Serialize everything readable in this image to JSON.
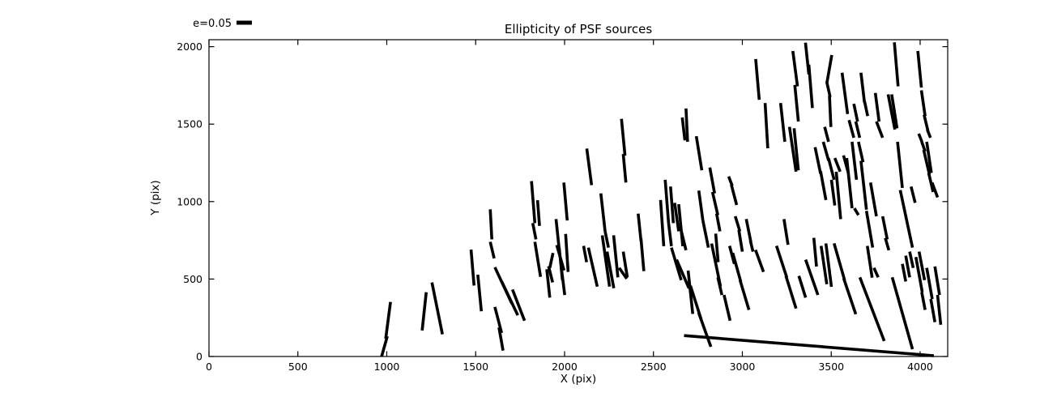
{
  "title": "Ellipticity of PSF sources",
  "legend": {
    "label": "e=0.05"
  },
  "axes": {
    "xlabel": "X (pix)",
    "ylabel": "Y (pix)"
  },
  "chart_data": {
    "type": "scatter",
    "subtype": "ellipticity-stick-map",
    "title": "Ellipticity of PSF sources",
    "xlabel": "X (pix)",
    "ylabel": "Y (pix)",
    "xlim": [
      0,
      4155
    ],
    "ylim": [
      0,
      2045
    ],
    "xticks": [
      0,
      500,
      1000,
      1500,
      2000,
      2500,
      3000,
      3500,
      4000
    ],
    "yticks": [
      0,
      500,
      1000,
      1500,
      2000
    ],
    "grid": false,
    "frame_color": "#000000",
    "stick_color": "#000000",
    "legend": {
      "label": "e=0.05",
      "position": "outside-upper-left",
      "reference_ellipticity": 0.05
    },
    "segments": [
      [
        971,
        0,
        1003,
        131
      ],
      [
        994,
        115,
        1021,
        352
      ],
      [
        1199,
        168,
        1222,
        415
      ],
      [
        1254,
        478,
        1313,
        143
      ],
      [
        1474,
        690,
        1491,
        458
      ],
      [
        1512,
        528,
        1532,
        292
      ],
      [
        1582,
        950,
        1591,
        756
      ],
      [
        1582,
        740,
        1604,
        633
      ],
      [
        1608,
        576,
        1704,
        341
      ],
      [
        1646,
        485,
        1737,
        266
      ],
      [
        1608,
        320,
        1646,
        152
      ],
      [
        1631,
        187,
        1654,
        38
      ],
      [
        1707,
        432,
        1775,
        231
      ],
      [
        1814,
        1132,
        1833,
        861
      ],
      [
        1848,
        1009,
        1859,
        843
      ],
      [
        1821,
        861,
        1839,
        756
      ],
      [
        1833,
        740,
        1865,
        514
      ],
      [
        1910,
        583,
        1933,
        478
      ],
      [
        1900,
        563,
        1917,
        380
      ],
      [
        1917,
        572,
        1935,
        668
      ],
      [
        1952,
        887,
        1970,
        690
      ],
      [
        1970,
        700,
        1988,
        493
      ],
      [
        1956,
        719,
        1997,
        556
      ],
      [
        1981,
        581,
        2001,
        397
      ],
      [
        1996,
        1123,
        2015,
        878
      ],
      [
        2006,
        791,
        2020,
        546
      ],
      [
        2107,
        714,
        2124,
        609
      ],
      [
        2125,
        1342,
        2152,
        1106
      ],
      [
        2204,
        1053,
        2228,
        808
      ],
      [
        2228,
        808,
        2247,
        703
      ],
      [
        2134,
        703,
        2184,
        451
      ],
      [
        2212,
        782,
        2253,
        451
      ],
      [
        2239,
        677,
        2277,
        441
      ],
      [
        2276,
        782,
        2300,
        511
      ],
      [
        2307,
        572,
        2350,
        502
      ],
      [
        2330,
        677,
        2353,
        511
      ],
      [
        2414,
        922,
        2430,
        745
      ],
      [
        2430,
        760,
        2446,
        551
      ],
      [
        2320,
        1534,
        2340,
        1297
      ],
      [
        2330,
        1307,
        2345,
        1123
      ],
      [
        2540,
        1010,
        2558,
        712
      ],
      [
        2566,
        1141,
        2585,
        861
      ],
      [
        2596,
        1097,
        2612,
        861
      ],
      [
        2585,
        861,
        2601,
        712
      ],
      [
        2601,
        703,
        2656,
        493
      ],
      [
        2619,
        992,
        2642,
        808
      ],
      [
        2642,
        983,
        2665,
        712
      ],
      [
        2657,
        808,
        2683,
        686
      ],
      [
        2662,
        1543,
        2677,
        1395
      ],
      [
        2683,
        1601,
        2692,
        1386
      ],
      [
        2741,
        1422,
        2772,
        1202
      ],
      [
        2755,
        1071,
        2778,
        878
      ],
      [
        2778,
        878,
        2809,
        703
      ],
      [
        2817,
        1220,
        2844,
        1053
      ],
      [
        2832,
        1062,
        2862,
        913
      ],
      [
        2855,
        922,
        2874,
        808
      ],
      [
        2923,
        1162,
        2943,
        1102
      ],
      [
        2938,
        1109,
        2968,
        978
      ],
      [
        2960,
        905,
        2986,
        808
      ],
      [
        2980,
        817,
        3000,
        677
      ],
      [
        3022,
        887,
        3048,
        738
      ],
      [
        3045,
        747,
        3060,
        677
      ],
      [
        3075,
        1920,
        3095,
        1657
      ],
      [
        3128,
        1636,
        3143,
        1344
      ],
      [
        3215,
        1636,
        3239,
        1386
      ],
      [
        3265,
        1482,
        3302,
        1193
      ],
      [
        3291,
        1473,
        3315,
        1202
      ],
      [
        3284,
        1972,
        3310,
        1744
      ],
      [
        3295,
        1753,
        3315,
        1517
      ],
      [
        3355,
        2026,
        3374,
        1821
      ],
      [
        3374,
        1884,
        3394,
        1604
      ],
      [
        2630,
        625,
        2700,
        440
      ],
      [
        2695,
        555,
        2721,
        275
      ],
      [
        2708,
        457,
        2768,
        241
      ],
      [
        2754,
        283,
        2823,
        63
      ],
      [
        2827,
        729,
        2877,
        453
      ],
      [
        2850,
        793,
        2864,
        609
      ],
      [
        2862,
        511,
        2885,
        397
      ],
      [
        2897,
        397,
        2931,
        231
      ],
      [
        2928,
        714,
        2955,
        598
      ],
      [
        2946,
        668,
        2991,
        483
      ],
      [
        2987,
        493,
        3037,
        301
      ],
      [
        3074,
        688,
        3119,
        546
      ],
      [
        3192,
        714,
        3250,
        510
      ],
      [
        3245,
        520,
        3302,
        310
      ],
      [
        3318,
        520,
        3356,
        380
      ],
      [
        3234,
        887,
        3257,
        721
      ],
      [
        3356,
        625,
        3425,
        397
      ],
      [
        3402,
        766,
        3417,
        581
      ],
      [
        3443,
        714,
        3475,
        467
      ],
      [
        3470,
        730,
        3501,
        450
      ],
      [
        3516,
        730,
        3575,
        493
      ],
      [
        3570,
        504,
        3638,
        273
      ],
      [
        3661,
        511,
        3798,
        100
      ],
      [
        3703,
        714,
        3730,
        509
      ],
      [
        3740,
        572,
        3764,
        511
      ],
      [
        3843,
        511,
        3957,
        47
      ],
      [
        3900,
        598,
        3919,
        484
      ],
      [
        3919,
        651,
        3941,
        511
      ],
      [
        3941,
        677,
        3961,
        572
      ],
      [
        3976,
        642,
        4012,
        415
      ],
      [
        3994,
        677,
        4025,
        493
      ],
      [
        4009,
        415,
        4028,
        301
      ],
      [
        4037,
        572,
        4068,
        371
      ],
      [
        4060,
        371,
        4083,
        222
      ],
      [
        4083,
        581,
        4109,
        397
      ],
      [
        4098,
        397,
        4116,
        205
      ],
      [
        3409,
        1351,
        3440,
        1180
      ],
      [
        3440,
        1196,
        3470,
        1010
      ],
      [
        3455,
        1386,
        3485,
        1265
      ],
      [
        3485,
        1278,
        3516,
        1141
      ],
      [
        3501,
        1141,
        3520,
        975
      ],
      [
        3520,
        1281,
        3550,
        1193
      ],
      [
        3528,
        1193,
        3553,
        887
      ],
      [
        3569,
        1298,
        3596,
        1185
      ],
      [
        3587,
        1281,
        3617,
        957
      ],
      [
        3617,
        1386,
        3642,
        1141
      ],
      [
        3630,
        957,
        3653,
        913
      ],
      [
        3653,
        1386,
        3679,
        1254
      ],
      [
        3667,
        1263,
        3698,
        948
      ],
      [
        3698,
        940,
        3733,
        703
      ],
      [
        3721,
        1123,
        3754,
        905
      ],
      [
        3789,
        905,
        3815,
        756
      ],
      [
        3804,
        765,
        3824,
        686
      ],
      [
        3873,
        1386,
        3900,
        1088
      ],
      [
        3888,
        1074,
        3957,
        703
      ],
      [
        3949,
        1097,
        3972,
        992
      ],
      [
        4009,
        1386,
        4028,
        1324
      ],
      [
        4020,
        1333,
        4052,
        1176
      ],
      [
        4037,
        1386,
        4063,
        1185
      ],
      [
        4048,
        1185,
        4073,
        1062
      ],
      [
        4067,
        1123,
        4098,
        1027
      ],
      [
        3503,
        1946,
        3475,
        1762
      ],
      [
        3475,
        1771,
        3494,
        1675
      ],
      [
        3490,
        1684,
        3498,
        1482
      ],
      [
        3463,
        1482,
        3485,
        1386
      ],
      [
        3561,
        1832,
        3592,
        1565
      ],
      [
        3600,
        1526,
        3627,
        1412
      ],
      [
        3627,
        1631,
        3648,
        1517
      ],
      [
        3638,
        1517,
        3660,
        1412
      ],
      [
        3667,
        1832,
        3687,
        1639
      ],
      [
        3687,
        1648,
        3705,
        1552
      ],
      [
        3748,
        1701,
        3769,
        1517
      ],
      [
        3754,
        1517,
        3789,
        1412
      ],
      [
        3820,
        1692,
        3858,
        1465
      ],
      [
        3840,
        1692,
        3870,
        1473
      ],
      [
        3855,
        2028,
        3876,
        1744
      ],
      [
        3987,
        1972,
        4007,
        1736
      ],
      [
        4007,
        1718,
        4028,
        1552
      ],
      [
        4022,
        1561,
        4044,
        1456
      ],
      [
        4040,
        1465,
        4058,
        1412
      ],
      [
        3992,
        1438,
        4010,
        1386
      ],
      [
        2672,
        135,
        4077,
        5
      ]
    ]
  }
}
